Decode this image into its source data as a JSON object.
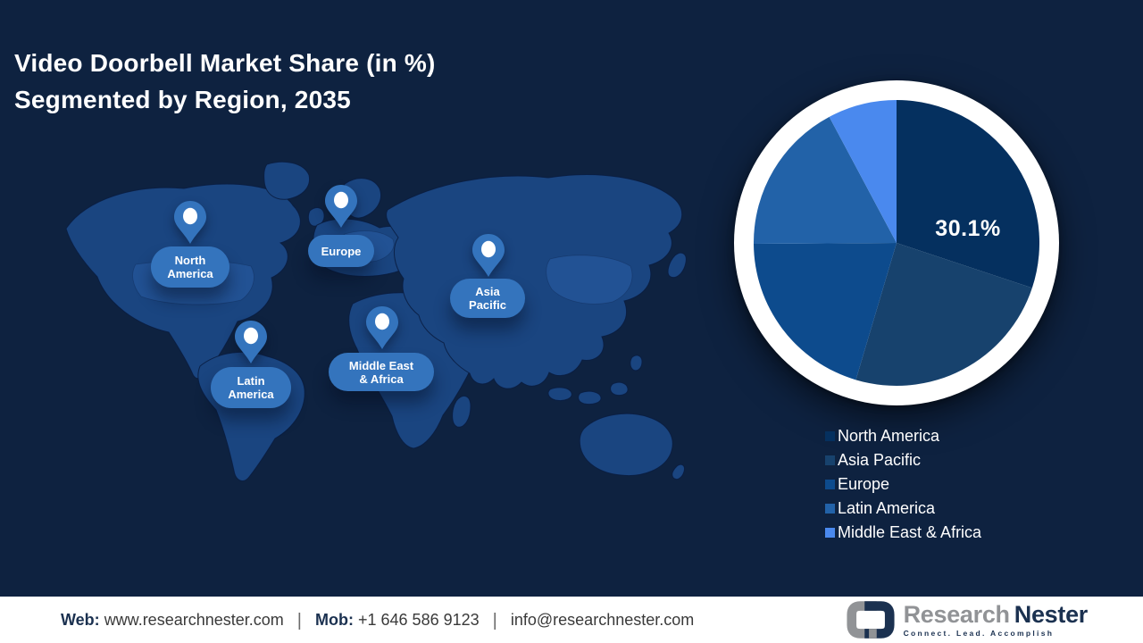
{
  "title": {
    "line1": "Video Doorbell Market Share (in %)",
    "line2": "Segmented by Region, 2035"
  },
  "map": {
    "pins": [
      {
        "id": "north-america",
        "lines": [
          "North",
          "America"
        ]
      },
      {
        "id": "europe",
        "lines": [
          "Europe"
        ]
      },
      {
        "id": "asia-pacific",
        "lines": [
          "Asia",
          "Pacific"
        ]
      },
      {
        "id": "middle-east-africa",
        "lines": [
          "Middle East",
          "& Africa"
        ]
      },
      {
        "id": "latin-america",
        "lines": [
          "Latin",
          "America"
        ]
      }
    ],
    "pin_icon": "location-pin-icon"
  },
  "chart_data": {
    "type": "pie",
    "title": "Video Doorbell Market Share (in %) Segmented by Region, 2035",
    "labels": [
      "North America",
      "Asia Pacific",
      "Europe",
      "Latin America",
      "Middle East & Africa"
    ],
    "values": [
      30.1,
      24.5,
      20.3,
      17.3,
      7.8
    ],
    "colors": [
      "#05305f",
      "#17426d",
      "#0d4b8d",
      "#2262a8",
      "#4a89ee"
    ],
    "callout_label": "30.1%",
    "callout_slice": "North America",
    "start_angle_deg": 0,
    "direction": "clockwise",
    "legend_position": "bottom-right",
    "ring_color": "#ffffff"
  },
  "legend_note": "legend labels and swatch colors come from chart_data.labels / chart_data.colors",
  "footer": {
    "web_label": "Web:",
    "web_value": "www.researchnester.com",
    "separator": "|",
    "mob_label": "Mob:",
    "mob_value": "+1 646 586 9123",
    "email": "info@researchnester.com",
    "logo": {
      "brand_gray": "Research",
      "brand_navy": "Nester",
      "tagline": "Connect. Lead. Accomplish",
      "icon": "chain-links-icon"
    }
  },
  "colors": {
    "bg": "#0e2240",
    "land": "#1a4580",
    "land_light": "#2a5ea6",
    "pill": "#3474bd",
    "brand_gray": "#919396",
    "brand_navy": "#1b3150",
    "footer_text": "#3a3a3a"
  }
}
